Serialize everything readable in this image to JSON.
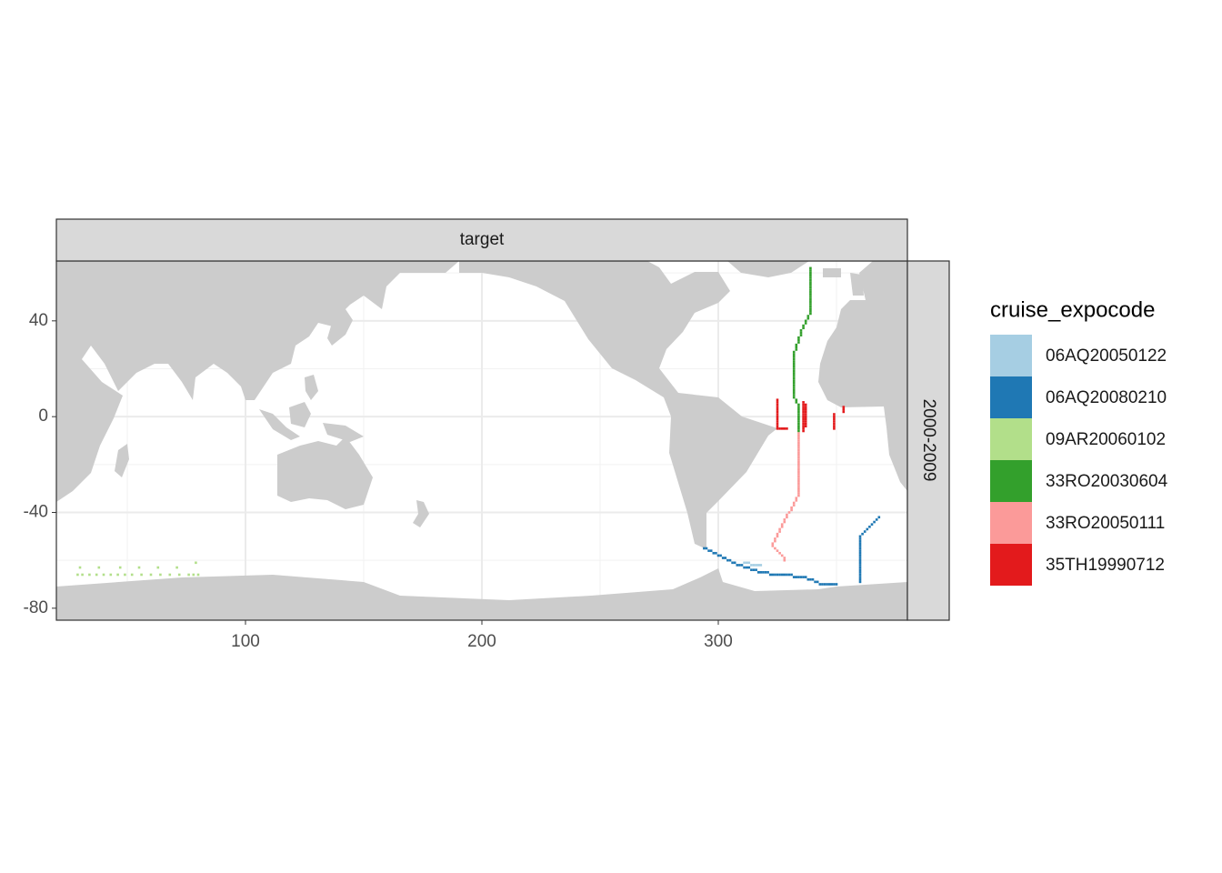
{
  "chart_data": {
    "type": "tile",
    "facet_col": "target",
    "facet_row": "2000-2009",
    "legend_title": "cruise_expocode",
    "xlim": [
      20,
      380
    ],
    "ylim": [
      -85,
      65
    ],
    "xticks": [
      100,
      200,
      300
    ],
    "yticks": [
      -80,
      -40,
      0,
      40
    ],
    "x_minor_breaks": [
      50,
      150,
      250,
      350
    ],
    "y_minor_breaks": [
      -60,
      -20,
      20,
      60
    ],
    "grid": true,
    "series": [
      {
        "name": "06AQ20050122",
        "color": "#a6cee3",
        "x": [
          311,
          312,
          313,
          314,
          315,
          316,
          317,
          318
        ],
        "y": [
          -61,
          -61,
          -61,
          -62,
          -62,
          -62,
          -62,
          -62
        ]
      },
      {
        "name": "06AQ20080210",
        "color": "#1f78b4",
        "x": [
          294,
          295,
          296,
          297,
          298,
          299,
          300,
          301,
          302,
          303,
          304,
          305,
          306,
          307,
          308,
          309,
          310,
          311,
          312,
          313,
          314,
          315,
          316,
          317,
          318,
          319,
          320,
          321,
          322,
          323,
          324,
          325,
          326,
          327,
          328,
          329,
          330,
          331,
          332,
          333,
          334,
          335,
          336,
          337,
          338,
          339,
          340,
          341,
          342,
          343,
          344,
          345,
          346,
          347,
          348,
          349,
          350,
          360,
          360,
          360,
          360,
          360,
          360,
          360,
          360,
          360,
          360,
          360,
          360,
          360,
          360,
          360,
          360,
          360,
          360,
          360,
          360,
          361,
          362,
          363,
          364,
          365,
          366,
          367,
          368
        ],
        "y": [
          -55,
          -55,
          -56,
          -56,
          -57,
          -57,
          -58,
          -58,
          -59,
          -59,
          -60,
          -60,
          -61,
          -61,
          -62,
          -62,
          -62,
          -63,
          -63,
          -63,
          -64,
          -64,
          -64,
          -65,
          -65,
          -65,
          -65,
          -65,
          -66,
          -66,
          -66,
          -66,
          -66,
          -66,
          -66,
          -66,
          -66,
          -66,
          -67,
          -67,
          -67,
          -67,
          -67,
          -67,
          -68,
          -68,
          -68,
          -69,
          -69,
          -70,
          -70,
          -70,
          -70,
          -70,
          -70,
          -70,
          -70,
          -69,
          -68,
          -67,
          -66,
          -65,
          -64,
          -63,
          -62,
          -61,
          -60,
          -59,
          -58,
          -57,
          -56,
          -55,
          -54,
          -53,
          -52,
          -51,
          -50,
          -49,
          -48,
          -47,
          -46,
          -45,
          -44,
          -43,
          -42
        ]
      },
      {
        "name": "09AR20060102",
        "color": "#b2df8a",
        "x": [
          29,
          31,
          34,
          37,
          40,
          43,
          46,
          49,
          52,
          56,
          60,
          64,
          68,
          72,
          76,
          78,
          80,
          30,
          38,
          47,
          55,
          63,
          71,
          79
        ],
        "y": [
          -66,
          -66,
          -66,
          -66,
          -66,
          -66,
          -66,
          -66,
          -66,
          -66,
          -66,
          -66,
          -66,
          -66,
          -66,
          -66,
          -66,
          -63,
          -63,
          -63,
          -63,
          -63,
          -63,
          -61
        ]
      },
      {
        "name": "33RO20030604",
        "color": "#33a02c",
        "x": [
          339,
          339,
          339,
          339,
          339,
          339,
          339,
          339,
          339,
          339,
          339,
          339,
          339,
          339,
          339,
          339,
          339,
          339,
          339,
          339,
          338,
          338,
          337,
          337,
          336,
          336,
          335,
          335,
          335,
          334,
          334,
          334,
          333,
          333,
          333,
          332,
          332,
          332,
          332,
          332,
          332,
          332,
          332,
          332,
          332,
          332,
          332,
          332,
          332,
          332,
          332,
          332,
          332,
          332,
          332,
          333,
          333,
          334,
          334,
          334,
          334,
          334,
          334,
          334,
          334,
          334,
          334,
          334,
          334
        ],
        "y": [
          62,
          61,
          60,
          59,
          58,
          57,
          56,
          55,
          54,
          53,
          52,
          51,
          50,
          49,
          48,
          47,
          46,
          45,
          44,
          43,
          42,
          41,
          40,
          39,
          38,
          37,
          36,
          35,
          34,
          33,
          32,
          31,
          30,
          29,
          28,
          27,
          26,
          25,
          24,
          23,
          22,
          21,
          20,
          19,
          18,
          17,
          16,
          15,
          14,
          13,
          12,
          11,
          10,
          9,
          8,
          7,
          6,
          5,
          4,
          3,
          2,
          1,
          0,
          -1,
          -2,
          -3,
          -4,
          -5,
          -6
        ]
      },
      {
        "name": "33RO20050111",
        "color": "#fb9a99",
        "x": [
          334,
          334,
          334,
          334,
          334,
          334,
          334,
          334,
          334,
          334,
          334,
          334,
          334,
          334,
          334,
          334,
          334,
          334,
          334,
          334,
          334,
          334,
          334,
          334,
          334,
          334,
          334,
          333,
          333,
          332,
          332,
          331,
          331,
          330,
          329,
          329,
          328,
          328,
          327,
          327,
          326,
          326,
          325,
          325,
          324,
          324,
          323,
          323,
          324,
          325,
          326,
          327,
          328,
          328
        ],
        "y": [
          -7,
          -8,
          -9,
          -10,
          -11,
          -12,
          -13,
          -14,
          -15,
          -16,
          -17,
          -18,
          -19,
          -20,
          -21,
          -22,
          -23,
          -24,
          -25,
          -26,
          -27,
          -28,
          -29,
          -30,
          -31,
          -32,
          -33,
          -34,
          -35,
          -36,
          -37,
          -38,
          -39,
          -40,
          -41,
          -42,
          -43,
          -44,
          -45,
          -46,
          -47,
          -48,
          -49,
          -50,
          -51,
          -52,
          -53,
          -54,
          -55,
          -56,
          -57,
          -58,
          -59,
          -60
        ]
      },
      {
        "name": "35TH19990712",
        "color": "#e31a1c",
        "x": [
          325,
          325,
          325,
          325,
          325,
          325,
          325,
          325,
          325,
          325,
          325,
          325,
          325,
          326,
          327,
          328,
          329,
          336,
          336,
          336,
          336,
          336,
          336,
          336,
          336,
          336,
          336,
          336,
          336,
          336,
          337,
          337,
          337,
          337,
          337,
          337,
          337,
          337,
          337,
          337,
          349,
          349,
          349,
          349,
          349,
          349,
          349,
          353,
          353,
          353
        ],
        "y": [
          7,
          6,
          5,
          4,
          3,
          2,
          1,
          0,
          -1,
          -2,
          -3,
          -4,
          -5,
          -5,
          -5,
          -5,
          -5,
          6,
          5,
          4,
          3,
          2,
          1,
          0,
          -1,
          -2,
          -3,
          -4,
          -5,
          -6,
          5,
          4,
          3,
          2,
          1,
          0,
          -1,
          -2,
          -3,
          -4,
          1,
          0,
          -1,
          -2,
          -3,
          -4,
          -5,
          2,
          3,
          4
        ]
      }
    ]
  }
}
